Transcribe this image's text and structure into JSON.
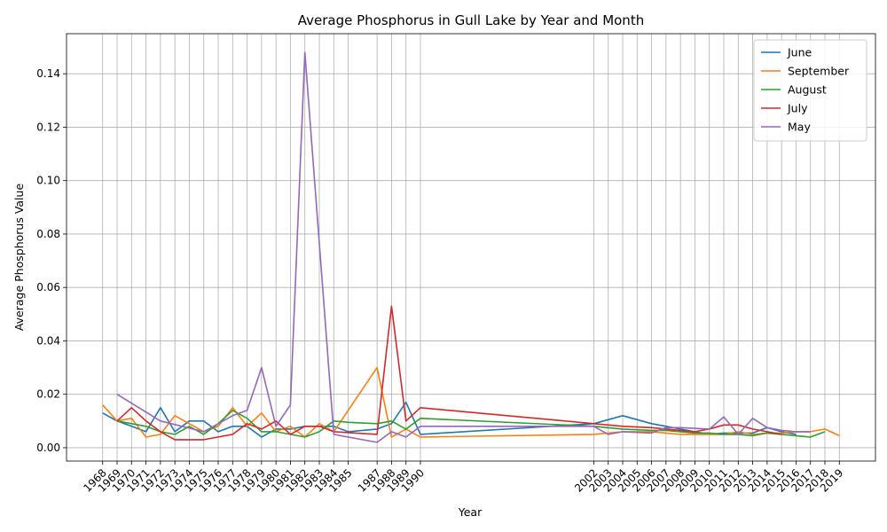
{
  "chart_data": {
    "type": "line",
    "title": "Average Phosphorus in Gull Lake by Year and Month",
    "xlabel": "Year",
    "ylabel": "Average Phosphorus Value",
    "xlim": [
      1965.5,
      2021.5
    ],
    "ylim": [
      -0.005,
      0.155
    ],
    "yticks": [
      0.0,
      0.02,
      0.04,
      0.06,
      0.08,
      0.1,
      0.12,
      0.14
    ],
    "ytick_labels": [
      "0.00",
      "0.02",
      "0.04",
      "0.06",
      "0.08",
      "0.10",
      "0.12",
      "0.14"
    ],
    "xticks": [
      1968,
      1969,
      1970,
      1971,
      1972,
      1973,
      1974,
      1975,
      1976,
      1977,
      1978,
      1979,
      1980,
      1981,
      1982,
      1983,
      1984,
      1985,
      1987,
      1988,
      1989,
      1990,
      2002,
      2003,
      2004,
      2005,
      2006,
      2007,
      2008,
      2009,
      2010,
      2011,
      2012,
      2013,
      2014,
      2015,
      2016,
      2017,
      2018,
      2019
    ],
    "grid": true,
    "legend_position": "top-right",
    "series": [
      {
        "name": "June",
        "color": "#1f77b4",
        "x": [
          1968,
          1969,
          1970,
          1971,
          1972,
          1973,
          1974,
          1975,
          1976,
          1977,
          1978,
          1979,
          1980,
          1981,
          1982,
          1983,
          1984,
          1985,
          1987,
          1988,
          1989,
          1990,
          2002,
          2004,
          2006,
          2007,
          2008,
          2009,
          2010,
          2011,
          2012,
          2013,
          2014,
          2015,
          2016
        ],
        "values": [
          0.013,
          0.01,
          0.008,
          0.006,
          0.015,
          0.006,
          0.01,
          0.01,
          0.006,
          0.008,
          0.008,
          0.004,
          0.007,
          0.007,
          0.008,
          0.008,
          0.008,
          0.006,
          0.007,
          0.009,
          0.017,
          0.005,
          0.009,
          0.012,
          0.009,
          0.008,
          0.007,
          0.006,
          0.005,
          0.0055,
          0.0055,
          0.0055,
          0.0075,
          0.006,
          0.005
        ]
      },
      {
        "name": "September",
        "color": "#ff7f0e",
        "x": [
          1968,
          1969,
          1970,
          1971,
          1972,
          1973,
          1974,
          1975,
          1976,
          1977,
          1978,
          1979,
          1980,
          1981,
          1982,
          1983,
          1984,
          1987,
          1988,
          1989,
          1990,
          2002,
          2004,
          2006,
          2007,
          2008,
          2009,
          2010,
          2011,
          2012,
          2013,
          2014,
          2015,
          2016,
          2017,
          2018,
          2019
        ],
        "values": [
          0.016,
          0.01,
          0.011,
          0.004,
          0.005,
          0.012,
          0.009,
          0.006,
          0.008,
          0.015,
          0.008,
          0.013,
          0.006,
          0.008,
          0.004,
          0.009,
          0.006,
          0.03,
          0.004,
          0.007,
          0.004,
          0.005,
          0.006,
          0.006,
          0.0055,
          0.005,
          0.005,
          0.005,
          0.005,
          0.006,
          0.005,
          0.0055,
          0.0055,
          0.006,
          0.006,
          0.007,
          0.0045
        ]
      },
      {
        "name": "August",
        "color": "#2ca02c",
        "x": [
          1969,
          1970,
          1971,
          1972,
          1973,
          1974,
          1975,
          1976,
          1977,
          1978,
          1979,
          1980,
          1981,
          1982,
          1983,
          1984,
          1985,
          1987,
          1988,
          1989,
          1990,
          2002,
          2004,
          2006,
          2007,
          2008,
          2009,
          2010,
          2011,
          2012,
          2013,
          2014,
          2015,
          2016,
          2017,
          2018
        ],
        "values": [
          0.01,
          0.009,
          0.008,
          0.006,
          0.005,
          0.008,
          0.005,
          0.009,
          0.014,
          0.011,
          0.006,
          0.006,
          0.005,
          0.004,
          0.006,
          0.01,
          0.0095,
          0.009,
          0.01,
          0.007,
          0.011,
          0.008,
          0.007,
          0.0065,
          0.0065,
          0.006,
          0.0055,
          0.0055,
          0.005,
          0.005,
          0.0045,
          0.0055,
          0.005,
          0.0045,
          0.004,
          0.006
        ]
      },
      {
        "name": "July",
        "color": "#d62728",
        "x": [
          1969,
          1970,
          1971,
          1972,
          1973,
          1974,
          1975,
          1976,
          1977,
          1978,
          1979,
          1980,
          1981,
          1982,
          1983,
          1984,
          1987,
          1988,
          1989,
          1990,
          2002,
          2004,
          2006,
          2007,
          2008,
          2009,
          2010,
          2011,
          2012,
          2013,
          2014,
          2015
        ],
        "values": [
          0.01,
          0.015,
          0.01,
          0.006,
          0.003,
          0.003,
          0.003,
          0.004,
          0.005,
          0.009,
          0.007,
          0.01,
          0.005,
          0.008,
          0.008,
          0.006,
          0.005,
          0.053,
          0.01,
          0.015,
          0.009,
          0.008,
          0.0075,
          0.007,
          0.0065,
          0.006,
          0.007,
          0.0085,
          0.0085,
          0.007,
          0.006,
          0.005
        ]
      },
      {
        "name": "May",
        "color": "#9467bd",
        "x": [
          1969,
          1972,
          1975,
          1977,
          1978,
          1979,
          1980,
          1981,
          1982,
          1984,
          1987,
          1988,
          1989,
          1990,
          2002,
          2003,
          2004,
          2006,
          2007,
          2008,
          2010,
          2011,
          2012,
          2013,
          2014,
          2015,
          2016,
          2017
        ],
        "values": [
          0.02,
          0.01,
          0.006,
          0.012,
          0.014,
          0.03,
          0.008,
          0.016,
          0.148,
          0.005,
          0.002,
          0.006,
          0.004,
          0.008,
          0.008,
          0.005,
          0.006,
          0.0055,
          0.0075,
          0.0075,
          0.007,
          0.0115,
          0.005,
          0.011,
          0.0075,
          0.0065,
          0.006,
          0.006
        ]
      }
    ]
  }
}
